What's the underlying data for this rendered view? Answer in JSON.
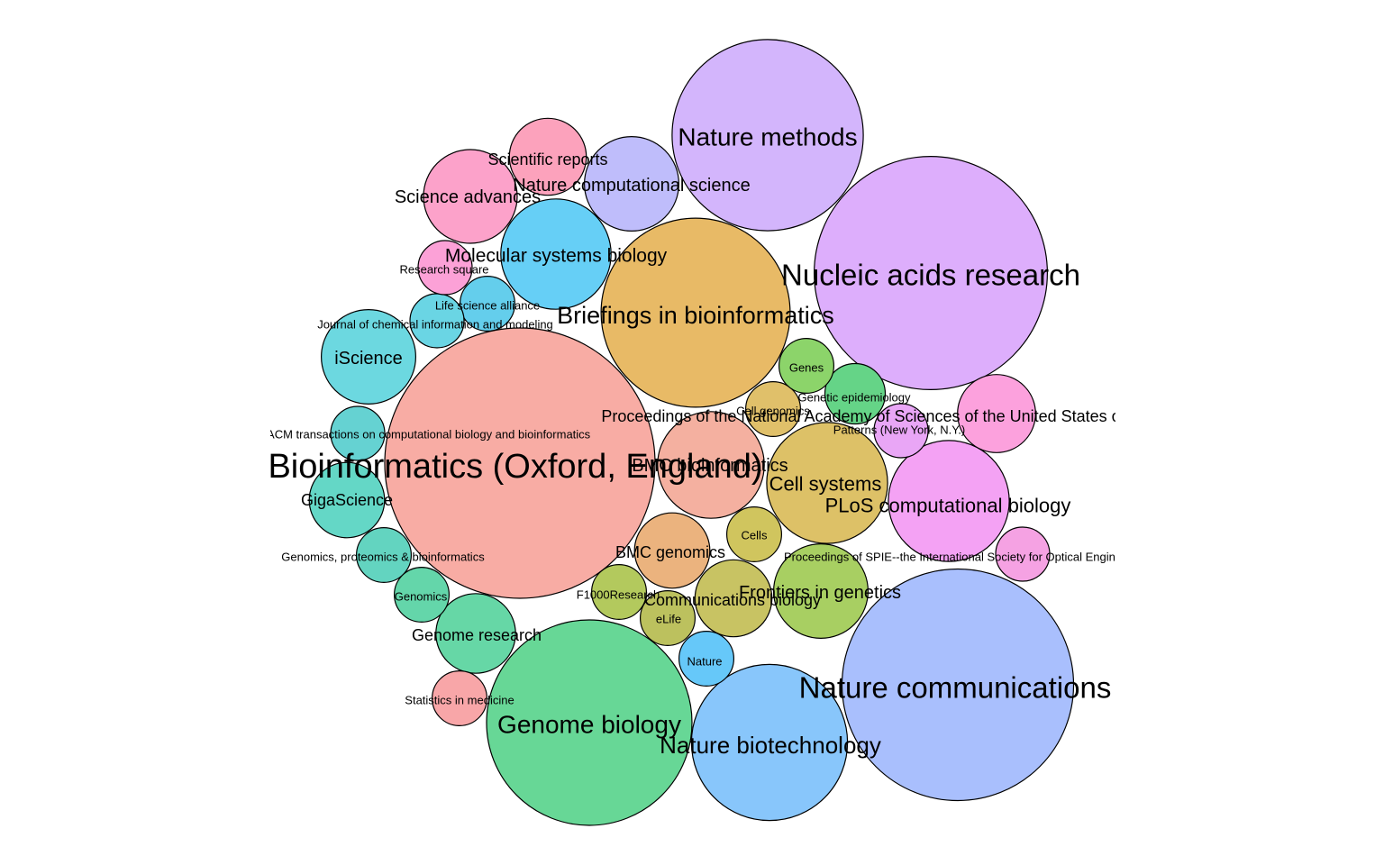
{
  "chart_data": {
    "type": "bubble",
    "title": "",
    "xlabel": "",
    "ylabel": "",
    "grid": false,
    "legend": "none",
    "bubbles": [
      {
        "label": "Bioinformatics (Oxford, England)",
        "value": 90000,
        "color": "#F8ACA4"
      },
      {
        "label": "Nucleic acids research",
        "value": 67000,
        "color": "#DDAEFC"
      },
      {
        "label": "Nature communications",
        "value": 66000,
        "color": "#A9BFFD"
      },
      {
        "label": "Genome biology",
        "value": 52000,
        "color": "#67D796"
      },
      {
        "label": "Nature methods",
        "value": 45000,
        "color": "#D3B5FC"
      },
      {
        "label": "Briefings in bioinformatics",
        "value": 44000,
        "color": "#E8BA66"
      },
      {
        "label": "Nature biotechnology",
        "value": 30000,
        "color": "#88C6FB"
      },
      {
        "label": "BMC bioinformatics",
        "value": 14000,
        "color": "#F4B0A0"
      },
      {
        "label": "Cell systems",
        "value": 18000,
        "color": "#DDC167"
      },
      {
        "label": "PLoS computational biology",
        "value": 18000,
        "color": "#F4A2F4"
      },
      {
        "label": "Molecular systems biology",
        "value": 15000,
        "color": "#66CFF6"
      },
      {
        "label": "Nature computational science",
        "value": 11000,
        "color": "#BFBDFB"
      },
      {
        "label": "Science advances",
        "value": 10800,
        "color": "#FCA2CA"
      },
      {
        "label": "Frontiers in genetics",
        "value": 11000,
        "color": "#A8CF62"
      },
      {
        "label": "iScience",
        "value": 11000,
        "color": "#6CD8E0"
      },
      {
        "label": "Genome research",
        "value": 7800,
        "color": "#66D7A6"
      },
      {
        "label": "Scientific reports",
        "value": 7300,
        "color": "#FCA2BC"
      },
      {
        "label": "Communications biology",
        "value": 7300,
        "color": "#C8C363"
      },
      {
        "label": "BMC genomics",
        "value": 7000,
        "color": "#EBB37E"
      },
      {
        "label": "GigaScience",
        "value": 7000,
        "color": "#64D7C6"
      },
      {
        "label": "Proceedings of the National Academy of Sciences of the United States of America",
        "value": 7500,
        "color": "#FCA1DD"
      },
      {
        "label": "Genetic epidemiology",
        "value": 4500,
        "color": "#65D487"
      },
      {
        "label": "Life science alliance",
        "value": 3700,
        "color": "#64CEEC"
      },
      {
        "label": "Genomics, proteomics & bioinformatics",
        "value": 3700,
        "color": "#63D4C0"
      },
      {
        "label": "IEEE/ACM transactions on computational biology and bioinformatics",
        "value": 3600,
        "color": "#65D2D2"
      },
      {
        "label": "Journal of chemical information and modeling",
        "value": 3600,
        "color": "#6AD5E4"
      },
      {
        "label": "Cell genomics",
        "value": 3700,
        "color": "#E0C06A"
      },
      {
        "label": "F1000Research",
        "value": 3700,
        "color": "#B3C95D"
      },
      {
        "label": "Cells",
        "value": 3700,
        "color": "#D0C55E"
      },
      {
        "label": "Genes",
        "value": 3700,
        "color": "#8CD46A"
      },
      {
        "label": "Nature",
        "value": 3700,
        "color": "#66C8F9"
      },
      {
        "label": "Patterns (New York, N.Y.)",
        "value": 3600,
        "color": "#E9A6F6"
      },
      {
        "label": "Proceedings of SPIE--the International Society for Optical Engineering",
        "value": 3600,
        "color": "#F5A2E3"
      },
      {
        "label": "Genomics",
        "value": 3700,
        "color": "#64D6AA"
      },
      {
        "label": "eLife",
        "value": 3700,
        "color": "#BCC15E"
      },
      {
        "label": "Research square",
        "value": 3600,
        "color": "#FCA1D7"
      },
      {
        "label": "Statistics in medicine",
        "value": 3700,
        "color": "#F8A6A8"
      }
    ]
  }
}
